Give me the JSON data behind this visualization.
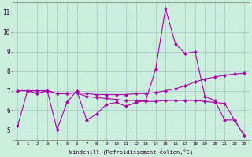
{
  "background_color": "#cceedd",
  "grid_color": "#aacccc",
  "line_color": "#aa00aa",
  "marker_color": "#aa00aa",
  "xlabel": "Windchill (Refroidissement éolien,°C)",
  "ylim": [
    4.5,
    11.5
  ],
  "xlim": [
    -0.5,
    23.5
  ],
  "yticks": [
    5,
    6,
    7,
    8,
    9,
    10,
    11
  ],
  "xticks": [
    0,
    1,
    2,
    3,
    4,
    5,
    6,
    7,
    8,
    9,
    10,
    11,
    12,
    13,
    14,
    15,
    16,
    17,
    18,
    19,
    20,
    21,
    22,
    23
  ],
  "series1": [
    5.2,
    7.0,
    7.0,
    7.0,
    5.0,
    6.4,
    7.0,
    5.5,
    5.8,
    6.3,
    6.4,
    6.2,
    6.4,
    6.5,
    8.1,
    11.2,
    9.4,
    8.9,
    9.0,
    6.7,
    6.5,
    5.5,
    5.5,
    4.7
  ],
  "series2": [
    7.0,
    7.0,
    6.85,
    7.0,
    6.85,
    6.85,
    6.9,
    6.85,
    6.8,
    6.8,
    6.8,
    6.8,
    6.85,
    6.85,
    6.9,
    7.0,
    7.1,
    7.25,
    7.45,
    7.6,
    7.7,
    7.8,
    7.85,
    7.9
  ],
  "series3": [
    7.0,
    7.0,
    6.85,
    7.0,
    6.85,
    6.85,
    6.9,
    6.7,
    6.65,
    6.6,
    6.55,
    6.5,
    6.5,
    6.45,
    6.45,
    6.5,
    6.5,
    6.5,
    6.5,
    6.45,
    6.4,
    6.35,
    5.5,
    4.7
  ]
}
